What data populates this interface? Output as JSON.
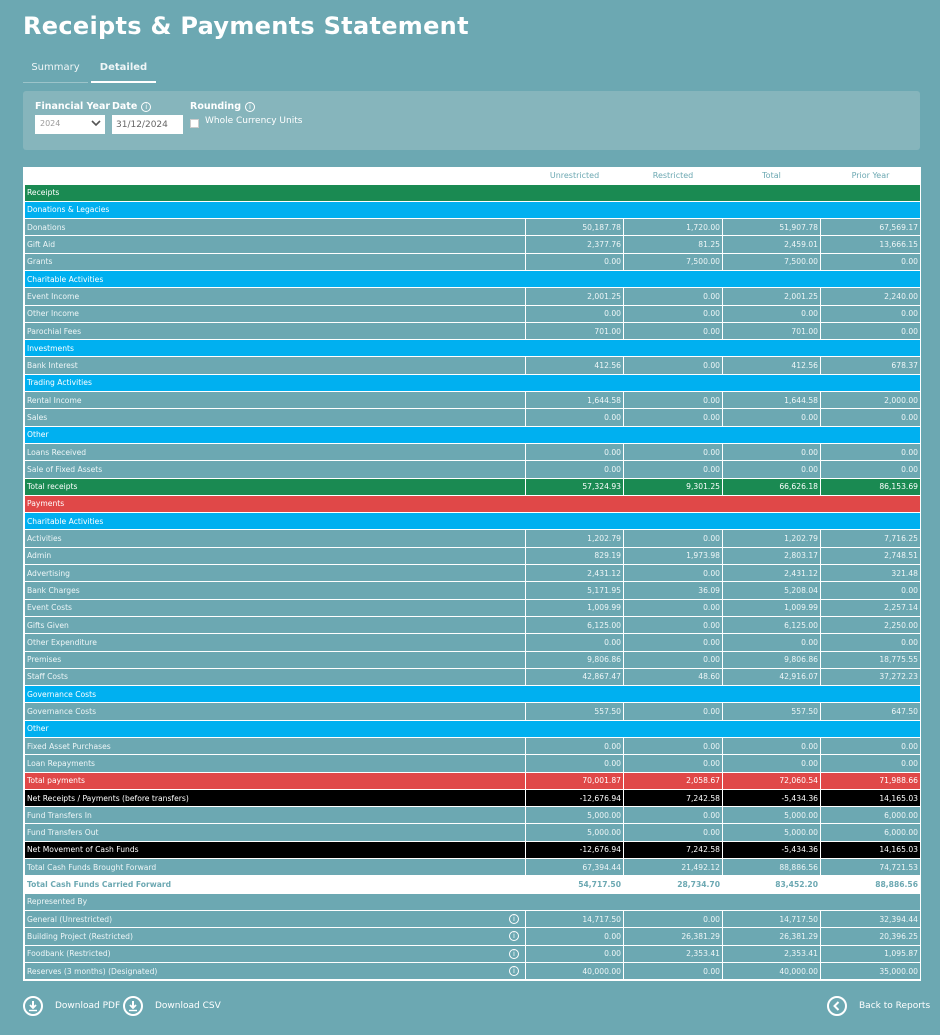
{
  "page": {
    "title": "Receipts & Payments Statement"
  },
  "tabs": [
    {
      "label": "Summary",
      "active": false
    },
    {
      "label": "Detailed",
      "active": true
    }
  ],
  "filters": {
    "financial_year": {
      "label": "Financial Year",
      "value": "2024"
    },
    "date": {
      "label": "Date",
      "value": "31/12/2024",
      "info_icon": "info-icon"
    },
    "rounding": {
      "label": "Rounding",
      "checkbox_label": "Whole Currency Units",
      "checked": false,
      "info_icon": "info-icon"
    }
  },
  "table": {
    "columns": [
      "",
      "Unrestricted",
      "Restricted",
      "Total",
      "Prior Year"
    ],
    "rows": [
      {
        "type": "section",
        "label": "Receipts"
      },
      {
        "type": "subsection",
        "label": "Donations & Legacies"
      },
      {
        "type": "row",
        "label": "Donations",
        "values": [
          "50,187.78",
          "1,720.00",
          "51,907.78",
          "67,569.17"
        ]
      },
      {
        "type": "row",
        "label": "Gift Aid",
        "values": [
          "2,377.76",
          "81.25",
          "2,459.01",
          "13,666.15"
        ]
      },
      {
        "type": "row",
        "label": "Grants",
        "values": [
          "0.00",
          "7,500.00",
          "7,500.00",
          "0.00"
        ]
      },
      {
        "type": "subsection",
        "label": "Charitable Activities"
      },
      {
        "type": "row",
        "label": "Event Income",
        "values": [
          "2,001.25",
          "0.00",
          "2,001.25",
          "2,240.00"
        ]
      },
      {
        "type": "row",
        "label": "Other Income",
        "values": [
          "0.00",
          "0.00",
          "0.00",
          "0.00"
        ]
      },
      {
        "type": "row",
        "label": "Parochial Fees",
        "values": [
          "701.00",
          "0.00",
          "701.00",
          "0.00"
        ]
      },
      {
        "type": "subsection",
        "label": "Investments"
      },
      {
        "type": "row",
        "label": "Bank Interest",
        "values": [
          "412.56",
          "0.00",
          "412.56",
          "678.37"
        ]
      },
      {
        "type": "subsection",
        "label": "Trading Activities"
      },
      {
        "type": "row",
        "label": "Rental Income",
        "values": [
          "1,644.58",
          "0.00",
          "1,644.58",
          "2,000.00"
        ]
      },
      {
        "type": "row",
        "label": "Sales",
        "values": [
          "0.00",
          "0.00",
          "0.00",
          "0.00"
        ]
      },
      {
        "type": "subsection",
        "label": "Other"
      },
      {
        "type": "row",
        "label": "Loans Received",
        "values": [
          "0.00",
          "0.00",
          "0.00",
          "0.00"
        ]
      },
      {
        "type": "row",
        "label": "Sale of Fixed Assets",
        "values": [
          "0.00",
          "0.00",
          "0.00",
          "0.00"
        ]
      },
      {
        "type": "total-r",
        "label": "Total receipts",
        "values": [
          "57,324.93",
          "9,301.25",
          "66,626.18",
          "86,153.69"
        ]
      },
      {
        "type": "payments",
        "label": "Payments"
      },
      {
        "type": "subsection",
        "label": "Charitable Activities"
      },
      {
        "type": "row",
        "label": "Activities",
        "values": [
          "1,202.79",
          "0.00",
          "1,202.79",
          "7,716.25"
        ]
      },
      {
        "type": "row",
        "label": "Admin",
        "values": [
          "829.19",
          "1,973.98",
          "2,803.17",
          "2,748.51"
        ]
      },
      {
        "type": "row",
        "label": "Advertising",
        "values": [
          "2,431.12",
          "0.00",
          "2,431.12",
          "321.48"
        ]
      },
      {
        "type": "row",
        "label": "Bank Charges",
        "values": [
          "5,171.95",
          "36.09",
          "5,208.04",
          "0.00"
        ]
      },
      {
        "type": "row",
        "label": "Event Costs",
        "values": [
          "1,009.99",
          "0.00",
          "1,009.99",
          "2,257.14"
        ]
      },
      {
        "type": "row",
        "label": "Gifts Given",
        "values": [
          "6,125.00",
          "0.00",
          "6,125.00",
          "2,250.00"
        ]
      },
      {
        "type": "row",
        "label": "Other Expenditure",
        "values": [
          "0.00",
          "0.00",
          "0.00",
          "0.00"
        ]
      },
      {
        "type": "row",
        "label": "Premises",
        "values": [
          "9,806.86",
          "0.00",
          "9,806.86",
          "18,775.55"
        ]
      },
      {
        "type": "row",
        "label": "Staff Costs",
        "values": [
          "42,867.47",
          "48.60",
          "42,916.07",
          "37,272.23"
        ]
      },
      {
        "type": "subsection",
        "label": "Governance Costs"
      },
      {
        "type": "row",
        "label": "Governance Costs",
        "values": [
          "557.50",
          "0.00",
          "557.50",
          "647.50"
        ]
      },
      {
        "type": "subsection",
        "label": "Other"
      },
      {
        "type": "row",
        "label": "Fixed Asset Purchases",
        "values": [
          "0.00",
          "0.00",
          "0.00",
          "0.00"
        ]
      },
      {
        "type": "row",
        "label": "Loan Repayments",
        "values": [
          "0.00",
          "0.00",
          "0.00",
          "0.00"
        ]
      },
      {
        "type": "total-p",
        "label": "Total payments",
        "values": [
          "70,001.87",
          "2,058.67",
          "72,060.54",
          "71,988.66"
        ]
      },
      {
        "type": "net",
        "label": "Net Receipts / Payments (before transfers)",
        "values": [
          "-12,676.94",
          "7,242.58",
          "-5,434.36",
          "14,165.03"
        ]
      },
      {
        "type": "row",
        "label": "Fund Transfers In",
        "values": [
          "5,000.00",
          "0.00",
          "5,000.00",
          "6,000.00"
        ]
      },
      {
        "type": "row",
        "label": "Fund Transfers Out",
        "values": [
          "5,000.00",
          "0.00",
          "5,000.00",
          "6,000.00"
        ]
      },
      {
        "type": "net",
        "label": "Net Movement of Cash Funds",
        "values": [
          "-12,676.94",
          "7,242.58",
          "-5,434.36",
          "14,165.03"
        ]
      },
      {
        "type": "row",
        "label": "Total Cash Funds Brought Forward",
        "values": [
          "67,394.44",
          "21,492.12",
          "88,886.56",
          "74,721.53"
        ]
      },
      {
        "type": "carried",
        "label": "Total Cash Funds Carried Forward",
        "values": [
          "54,717.50",
          "28,734.70",
          "83,452.20",
          "88,886.56"
        ]
      },
      {
        "type": "represented",
        "label": "Represented By"
      },
      {
        "type": "fund",
        "label": "General (Unrestricted)",
        "values": [
          "14,717.50",
          "0.00",
          "14,717.50",
          "32,394.44"
        ]
      },
      {
        "type": "fund",
        "label": "Building Project (Restricted)",
        "values": [
          "0.00",
          "26,381.29",
          "26,381.29",
          "20,396.25"
        ]
      },
      {
        "type": "fund",
        "label": "Foodbank (Restricted)",
        "values": [
          "0.00",
          "2,353.41",
          "2,353.41",
          "1,095.87"
        ]
      },
      {
        "type": "fund",
        "label": "Reserves (3 months) (Designated)",
        "values": [
          "40,000.00",
          "0.00",
          "40,000.00",
          "35,000.00"
        ]
      }
    ]
  },
  "footer": {
    "download_pdf": "Download PDF",
    "download_csv": "Download CSV",
    "back": "Back to Reports"
  },
  "colors": {
    "background": "#6ca8b2",
    "section_green": "#1a8a52",
    "subsection_blue": "#00b0f0",
    "payments_red": "#e04848",
    "net_black": "#000000"
  }
}
